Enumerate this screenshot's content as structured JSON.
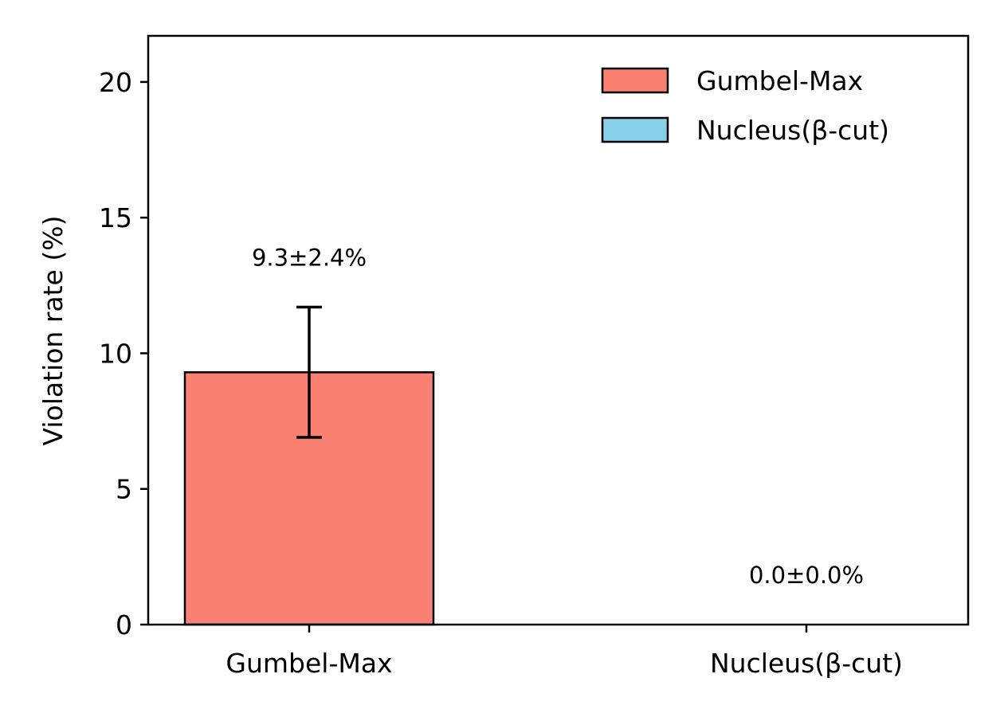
{
  "chart_data": {
    "type": "bar",
    "categories": [
      "Gumbel-Max",
      "Nucleus(β-cut)"
    ],
    "values": [
      9.3,
      0.0
    ],
    "errors": [
      2.4,
      0.0
    ],
    "data_labels": [
      "9.3±2.4%",
      "0.0±0.0%"
    ],
    "colors": [
      "#fa8072",
      "#87ceeb"
    ],
    "title": "",
    "xlabel": "",
    "ylabel": "Violation rate (%)",
    "ylim": [
      0,
      21.7
    ],
    "yticks": [
      0,
      5,
      10,
      15,
      20
    ],
    "legend": {
      "placement": "top-right",
      "entries": [
        "Gumbel-Max",
        "Nucleus(β-cut)"
      ]
    },
    "grid": false
  }
}
